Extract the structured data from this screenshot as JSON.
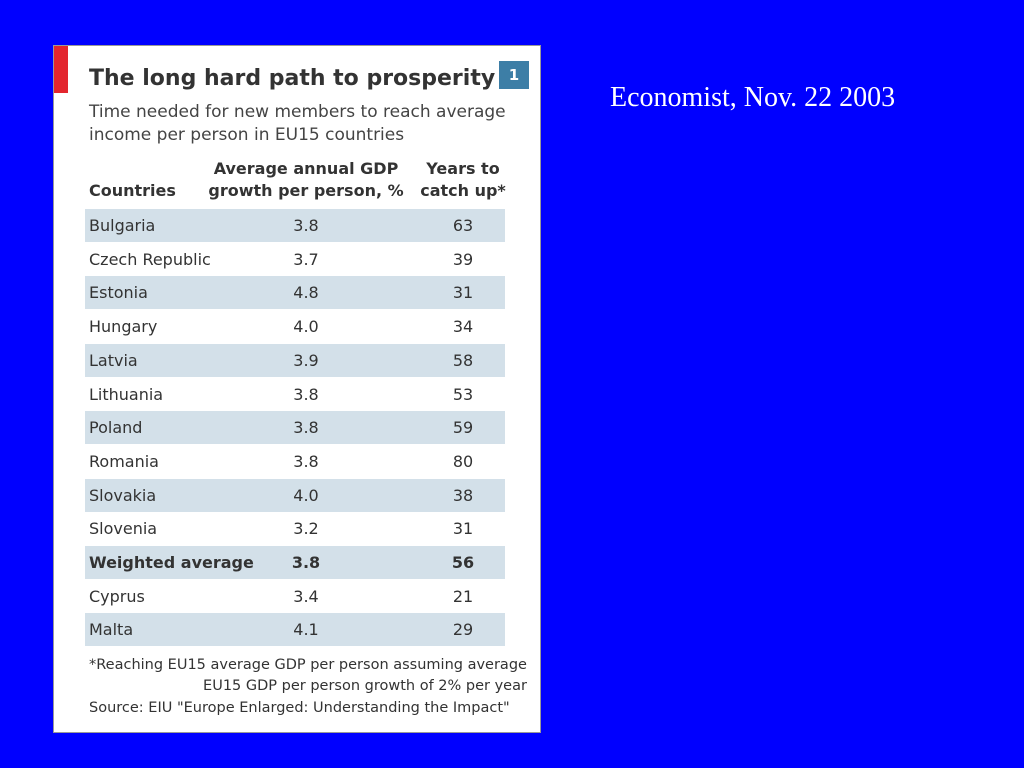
{
  "caption": "Economist, Nov. 22 2003",
  "card": {
    "title": "The long hard path to prosperity",
    "badge": "1",
    "subtitle": [
      "Time needed for new members to reach average",
      "income per person in EU15 countries"
    ],
    "table": {
      "columns": [
        [
          "Countries"
        ],
        [
          "Average annual GDP",
          "growth per person, %"
        ],
        [
          "Years to",
          "catch up*"
        ]
      ],
      "rows": [
        [
          "Bulgaria",
          "3.8",
          "63"
        ],
        [
          "Czech Republic",
          "3.7",
          "39"
        ],
        [
          "Estonia",
          "4.8",
          "31"
        ],
        [
          "Hungary",
          "4.0",
          "34"
        ],
        [
          "Latvia",
          "3.9",
          "58"
        ],
        [
          "Lithuania",
          "3.8",
          "53"
        ],
        [
          "Poland",
          "3.8",
          "59"
        ],
        [
          "Romania",
          "3.8",
          "80"
        ],
        [
          "Slovakia",
          "4.0",
          "38"
        ],
        [
          "Slovenia",
          "3.2",
          "31"
        ],
        [
          "Weighted average",
          "3.8",
          "56"
        ],
        [
          "Cyprus",
          "3.4",
          "21"
        ],
        [
          "Malta",
          "4.1",
          "29"
        ]
      ]
    },
    "footnote": [
      "*Reaching EU15 average GDP per person assuming average",
      "EU15 GDP per person growth of 2% per year"
    ],
    "source": "Source: EIU \"Europe Enlarged: Understanding the Impact\""
  }
}
